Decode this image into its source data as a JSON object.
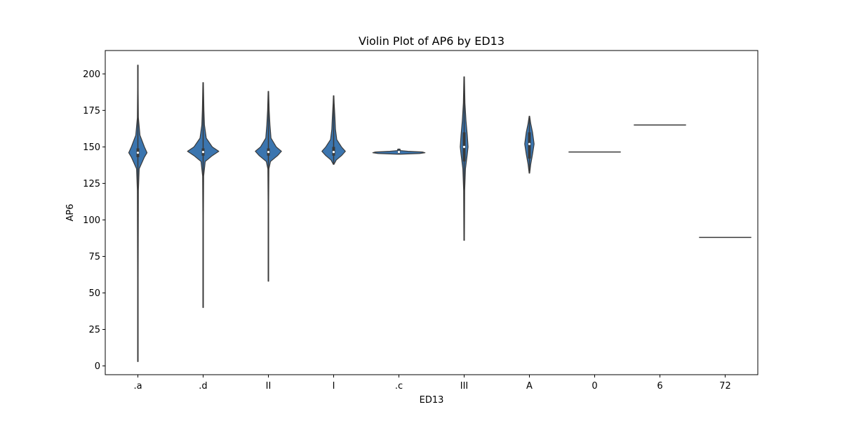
{
  "chart_data": {
    "type": "violin",
    "title": "Violin Plot of AP6 by ED13",
    "xlabel": "ED13",
    "ylabel": "AP6",
    "ylim": [
      -6,
      216
    ],
    "yticks": [
      0,
      25,
      50,
      75,
      100,
      125,
      150,
      175,
      200
    ],
    "grid": false,
    "legend": "none",
    "colors": {
      "fill": "#3b75af",
      "line": "#3a3a3a",
      "frame": "#000000"
    },
    "categories": [
      ".a",
      ".d",
      "II",
      "I",
      ".c",
      "III",
      "A",
      "0",
      "6",
      "72"
    ],
    "series": [
      {
        "category": ".a",
        "min": 3,
        "max": 206,
        "q1": 143,
        "median": 146,
        "q3": 149,
        "profile": [
          [
            3,
            0.01
          ],
          [
            60,
            0.01
          ],
          [
            120,
            0.02
          ],
          [
            135,
            0.05
          ],
          [
            143,
            0.25
          ],
          [
            146,
            0.35
          ],
          [
            150,
            0.25
          ],
          [
            158,
            0.08
          ],
          [
            170,
            0.02
          ],
          [
            190,
            0.01
          ],
          [
            206,
            0.01
          ]
        ]
      },
      {
        "category": ".d",
        "min": 40,
        "max": 194,
        "q1": 144,
        "median": 146.5,
        "q3": 149,
        "profile": [
          [
            40,
            0.01
          ],
          [
            100,
            0.01
          ],
          [
            130,
            0.02
          ],
          [
            140,
            0.08
          ],
          [
            144,
            0.35
          ],
          [
            147,
            0.6
          ],
          [
            150,
            0.35
          ],
          [
            156,
            0.12
          ],
          [
            165,
            0.05
          ],
          [
            175,
            0.03
          ],
          [
            194,
            0.01
          ]
        ]
      },
      {
        "category": "II",
        "min": 58,
        "max": 188,
        "q1": 144,
        "median": 146.5,
        "q3": 149,
        "profile": [
          [
            58,
            0.01
          ],
          [
            110,
            0.01
          ],
          [
            135,
            0.02
          ],
          [
            140,
            0.08
          ],
          [
            144,
            0.35
          ],
          [
            147,
            0.5
          ],
          [
            150,
            0.3
          ],
          [
            156,
            0.1
          ],
          [
            165,
            0.06
          ],
          [
            175,
            0.03
          ],
          [
            188,
            0.01
          ]
        ]
      },
      {
        "category": "I",
        "min": 138,
        "max": 185,
        "q1": 144,
        "median": 146.5,
        "q3": 150,
        "profile": [
          [
            138,
            0.01
          ],
          [
            141,
            0.1
          ],
          [
            144,
            0.3
          ],
          [
            147,
            0.45
          ],
          [
            150,
            0.3
          ],
          [
            155,
            0.12
          ],
          [
            162,
            0.07
          ],
          [
            170,
            0.05
          ],
          [
            180,
            0.02
          ],
          [
            185,
            0.01
          ]
        ]
      },
      {
        "category": ".c",
        "min": 145,
        "max": 148.5,
        "q1": 146,
        "median": 146.5,
        "q3": 147,
        "profile": [
          [
            145,
            0.05
          ],
          [
            145.5,
            0.8
          ],
          [
            146,
            1.0
          ],
          [
            146.5,
            0.9
          ],
          [
            147,
            0.35
          ],
          [
            147.5,
            0.05
          ],
          [
            148,
            0.05
          ],
          [
            148.5,
            0.04
          ]
        ]
      },
      {
        "category": "III",
        "min": 86,
        "max": 198,
        "q1": 140,
        "median": 150,
        "q3": 160,
        "profile": [
          [
            86,
            0.01
          ],
          [
            120,
            0.02
          ],
          [
            135,
            0.05
          ],
          [
            145,
            0.12
          ],
          [
            150,
            0.15
          ],
          [
            158,
            0.12
          ],
          [
            168,
            0.07
          ],
          [
            180,
            0.03
          ],
          [
            198,
            0.01
          ]
        ]
      },
      {
        "category": "A",
        "min": 132,
        "max": 171,
        "q1": 142,
        "median": 152,
        "q3": 160,
        "profile": [
          [
            132,
            0.01
          ],
          [
            138,
            0.05
          ],
          [
            145,
            0.12
          ],
          [
            152,
            0.18
          ],
          [
            160,
            0.12
          ],
          [
            166,
            0.05
          ],
          [
            171,
            0.01
          ]
        ]
      },
      {
        "category": "0",
        "value": 146.5
      },
      {
        "category": "6",
        "value": 165
      },
      {
        "category": "72",
        "value": 88
      }
    ]
  }
}
